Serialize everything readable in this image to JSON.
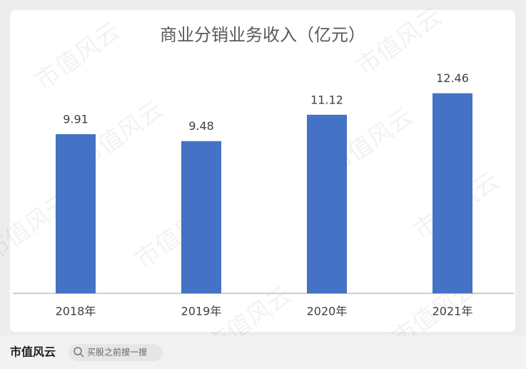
{
  "chart_data": {
    "type": "bar",
    "title": "商业分销业务收入（亿元）",
    "categories": [
      "2018年",
      "2019年",
      "2020年",
      "2021年"
    ],
    "values": [
      9.91,
      9.48,
      11.12,
      12.46
    ],
    "color": "#4472c4",
    "ylim": [
      0,
      14
    ]
  },
  "watermark": "市值风云",
  "footer": {
    "brand": "市值风云",
    "search_placeholder": "买股之前搜一搜"
  }
}
